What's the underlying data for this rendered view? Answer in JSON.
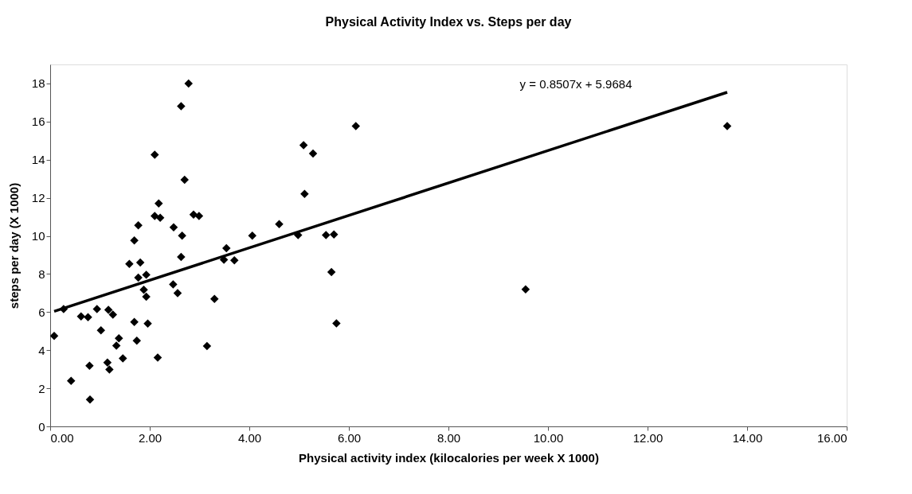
{
  "chart_data": {
    "type": "scatter",
    "title": "Physical Activity Index vs. Steps per day",
    "xlabel": "Physical activity index (kilocalories per week X 1000)",
    "ylabel": "steps per day (X 1000)",
    "xlim": [
      0,
      16
    ],
    "xticks": [
      {
        "value": 0,
        "label": "0.00"
      },
      {
        "value": 2,
        "label": "2.00"
      },
      {
        "value": 4,
        "label": "4.00"
      },
      {
        "value": 6,
        "label": "6.00"
      },
      {
        "value": 8,
        "label": "8.00"
      },
      {
        "value": 10,
        "label": "10.00"
      },
      {
        "value": 12,
        "label": "12.00"
      },
      {
        "value": 14,
        "label": "14.00"
      },
      {
        "value": 16,
        "label": "16.00"
      }
    ],
    "ylim": [
      0,
      19
    ],
    "yticks": [
      0,
      2,
      4,
      6,
      8,
      10,
      12,
      14,
      16,
      18
    ],
    "grid": false,
    "series": [
      {
        "color": "#000000",
        "marker": "diamond",
        "x": [
          2.78,
          2.63,
          2.1,
          2.7,
          2.18,
          2.1,
          2.21,
          2.88,
          2.99,
          1.77,
          2.48,
          2.65,
          1.69,
          2.63,
          1.59,
          1.81,
          1.77,
          1.93,
          1.88,
          1.93,
          2.47,
          2.56,
          3.54,
          3.49,
          3.7,
          3.3,
          0.27,
          0.62,
          0.76,
          0.94,
          1.17,
          1.26,
          0.08,
          1.02,
          1.69,
          1.96,
          1.38,
          1.33,
          1.74,
          3.15,
          0.42,
          0.79,
          1.15,
          1.19,
          1.46,
          2.16,
          0.8,
          4.06,
          4.6,
          4.98,
          5.09,
          5.28,
          5.11,
          5.54,
          5.7,
          5.65,
          5.75,
          6.14,
          9.55,
          13.6
        ],
        "values": [
          18.0,
          16.81,
          14.26,
          12.95,
          11.7,
          11.05,
          10.95,
          11.12,
          11.05,
          10.55,
          10.45,
          10.01,
          9.76,
          8.89,
          8.53,
          8.6,
          7.81,
          7.96,
          7.17,
          6.81,
          7.45,
          6.99,
          9.35,
          8.75,
          8.72,
          6.69,
          6.16,
          5.77,
          5.73,
          6.16,
          6.12,
          5.87,
          4.75,
          5.04,
          5.48,
          5.4,
          4.62,
          4.24,
          4.5,
          4.22,
          2.39,
          3.18,
          3.35,
          2.99,
          3.57,
          3.61,
          1.41,
          10.01,
          10.62,
          10.04,
          14.76,
          14.32,
          12.2,
          10.04,
          10.07,
          8.1,
          5.41,
          15.76,
          7.19,
          15.76
        ]
      },
      {
        "type": "line",
        "color": "#000000",
        "marker": "none",
        "line_style": "solid",
        "x": [
          0.08,
          13.6
        ],
        "values": [
          6.04,
          17.54
        ]
      }
    ],
    "annotations": [
      "y = 0.8507x + 5.9684"
    ]
  }
}
